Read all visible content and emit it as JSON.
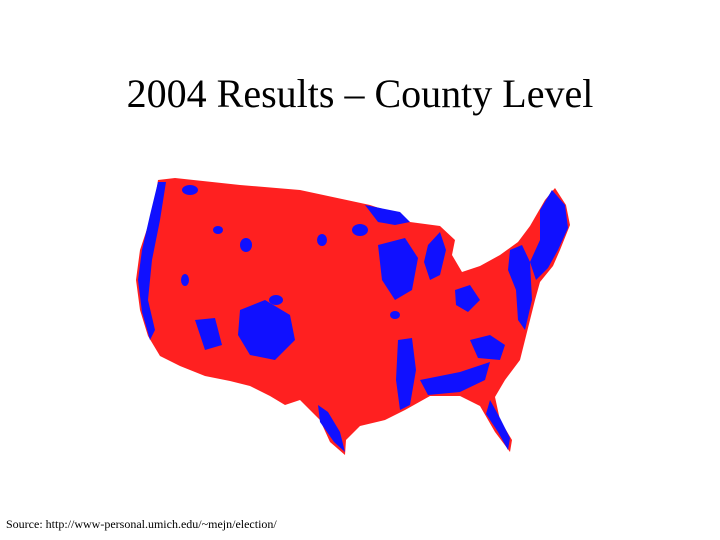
{
  "header": {
    "title": "2004 Results – County Level"
  },
  "footer": {
    "source": "Source: http://www-personal.umich.edu/~mejn/election/"
  }
}
